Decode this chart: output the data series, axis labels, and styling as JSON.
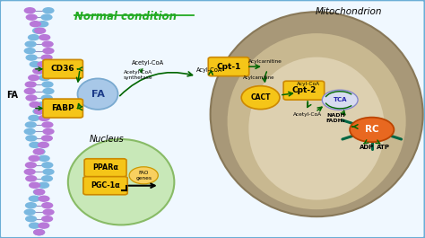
{
  "bg_color": "#f0f8ff",
  "border_color": "#6baed6",
  "title": "Normal condition",
  "title_color": "#22aa22",
  "mitochondrion_label": "Mitochondrion",
  "nucleus_label": "Nucleus",
  "yellow_box_color": "#f5c518",
  "fa_circle_color": "#a8c8e8",
  "mito_outer_color": "#a89878",
  "mito_inner_color": "#c8b890",
  "mito_innermost_color": "#ddd0b0",
  "nucleus_color": "#c8e8b8",
  "rc_color": "#e86820",
  "tca_color": "#d8dcf0",
  "tca_edge_color": "#8888cc",
  "arrow_color": "#006600",
  "dna_blue": "#7ab8e0",
  "dna_purple": "#b878d8",
  "dna_rung": "#9090c0"
}
